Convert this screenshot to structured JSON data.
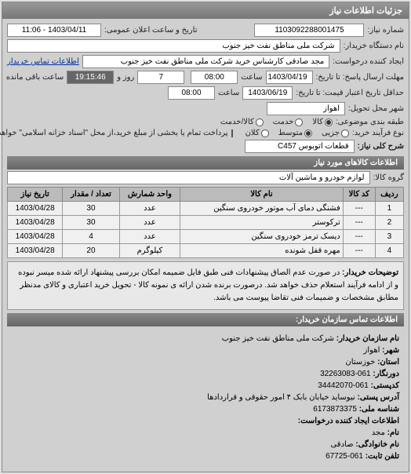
{
  "panel_title": "جزئیات اطلاعات نیاز",
  "fields": {
    "req_no_label": "شماره نیاز:",
    "req_no": "1103092288001475",
    "pub_date_label": "تاریخ و ساعت اعلان عمومی:",
    "pub_date": "1403/04/11 - 11:06",
    "buyer_name_label": "نام دستگاه خریدار:",
    "buyer_name": "شرکت ملی مناطق نفت خیز جنوب",
    "requester_label": "ایجاد کننده درخواست:",
    "requester": "مجد صادقی  کارشناس خرید  شرکت ملی مناطق نفت خیز جنوب",
    "contact_link": "اطلاعات تماس خریدار",
    "resp_deadline_label": "مهلت ارسال پاسخ: تا تاریخ:",
    "resp_date": "1403/04/19",
    "resp_time_label": "ساعت",
    "resp_time": "08:00",
    "days_label": "روز و",
    "days": "7",
    "remain_label": "ساعت باقی مانده",
    "remain": "19:15:46",
    "valid_deadline_label": "حداقل تاریخ اعتبار قیمت: تا تاریخ:",
    "valid_date": "1403/06/19",
    "valid_time_label": "ساعت",
    "valid_time": "08:00",
    "deliv_city_label": "شهر محل تحویل:",
    "deliv_city": "اهواز",
    "pkg_label": "طبقه بندی موضوعی:",
    "pkg_opts": [
      "کالا",
      "خدمت",
      "کالا/خدمت"
    ],
    "process_label": "نوع فرآیند خرید:",
    "process_opts": [
      "جزیی",
      "متوسط",
      "کلان"
    ],
    "payment_check": "پرداخت تمام یا بخشی از مبلغ خرید،از محل \"اسناد خزانه اسلامی\" خواهد بود.",
    "need_code_label": "شرح کلی نیاز:",
    "need_code": "قطعات اتوبوس C457"
  },
  "goods_header": "اطلاعات کالاهای مورد نیاز",
  "goods_group_label": "گروه کالا:",
  "goods_group": "لوازم خودرو و ماشین آلات",
  "table": {
    "cols": [
      "ردیف",
      "کد کالا",
      "نام کالا",
      "واحد شمارش",
      "تعداد / مقدار",
      "تاریخ نیاز"
    ],
    "rows": [
      [
        "1",
        "---",
        "فشنگی دمای آب موتور خودروی سنگین",
        "عدد",
        "30",
        "1403/04/28"
      ],
      [
        "2",
        "---",
        "ترکوستر",
        "عدد",
        "30",
        "1403/04/28"
      ],
      [
        "3",
        "---",
        "دیسک ترمز خودروی سنگین",
        "عدد",
        "4",
        "1403/04/28"
      ],
      [
        "4",
        "---",
        "مهره قفل شونده",
        "کیلوگرم",
        "20",
        "1403/04/28"
      ]
    ]
  },
  "note_label": "توضیحات خریدار:",
  "note": "در صورت عدم الصاق پیشنهادات فنی طبق فایل ضمیمه امکان بررسی پیشنهاد ارائه شده میسر نبوده و از ادامه فرآیند استعلام حذف خواهد شد. درصورت برنده شدن ارائه ی نمونه کالا - تحویل خرید اعتباری و کالای مدنظر مطابق مشخصات و ضمیمات فنی تقاضا پیوست می باشد.",
  "contact_header": "اطلاعات تماس سازمان خریدار:",
  "contact": {
    "org_label": "نام سازمان خریدار:",
    "org": "شرکت ملی مناطق نفت خیز جنوب",
    "city_label": "شهر:",
    "city": "اهواز",
    "prov_label": "استان:",
    "prov": "خوزستان",
    "fax_label": "دورنگار:",
    "fax": "061-32263083",
    "post_label": "کدپستی:",
    "post": "061-34442070",
    "addr_label": "آدرس پستی:",
    "addr": "نیوساید خیابان بابک ۴ امور حقوقی و قراردادها",
    "nid_label": "شناسه ملی:",
    "nid": "6173873375",
    "creator_label": "اطلاعات ایجاد کننده درخواست:",
    "name_label": "نام:",
    "name": "مجد",
    "lname_label": "نام خانوادگی:",
    "lname": "صادقی",
    "tel_label": "تلفن ثابت:",
    "tel": "061-67725"
  }
}
